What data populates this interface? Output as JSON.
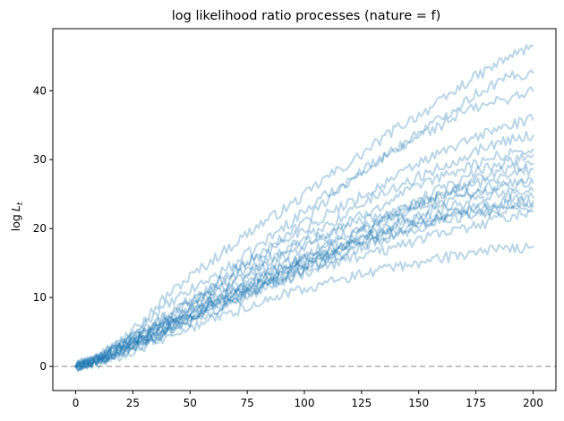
{
  "chart_data": {
    "type": "line",
    "title": "log likelihood ratio processes (nature = f)",
    "xlabel": "",
    "ylabel_main": "log",
    "ylabel_sym": "L",
    "ylabel_sub": "t",
    "xlim": [
      -10,
      210
    ],
    "ylim": [
      -3.5,
      49
    ],
    "xticks": [
      0,
      25,
      50,
      75,
      100,
      125,
      150,
      175,
      200
    ],
    "yticks": [
      0,
      10,
      20,
      30,
      40
    ],
    "grid": false,
    "legend": "none",
    "line_color": "#1f77b4",
    "line_alpha": 0.3,
    "reference_line": {
      "y": 0,
      "color": "#b0b0b0",
      "style": "dashed"
    },
    "x_sample": [
      0,
      10,
      20,
      30,
      40,
      50,
      60,
      70,
      80,
      90,
      100,
      110,
      120,
      130,
      140,
      150,
      160,
      170,
      180,
      190,
      200
    ],
    "series": [
      {
        "values": [
          0,
          1.2,
          3.6,
          6.9,
          10.3,
          13.0,
          15.5,
          18.0,
          20.5,
          22.5,
          24.8,
          27.5,
          29.5,
          32.0,
          34.5,
          36.5,
          38.5,
          41.0,
          43.0,
          45.0,
          46.5
        ]
      },
      {
        "values": [
          0,
          1.5,
          3.8,
          6.5,
          8.8,
          11.0,
          13.0,
          15.0,
          17.5,
          20.0,
          22.5,
          25.0,
          27.0,
          29.5,
          31.5,
          34.0,
          36.0,
          38.5,
          40.5,
          42.0,
          42.6
        ]
      },
      {
        "values": [
          0,
          1.0,
          3.0,
          5.0,
          7.2,
          9.5,
          11.5,
          14.0,
          16.0,
          18.5,
          21.0,
          24.0,
          27.0,
          29.5,
          31.0,
          33.5,
          35.0,
          37.0,
          38.0,
          39.0,
          40.0
        ]
      },
      {
        "values": [
          0,
          1.3,
          3.2,
          5.4,
          7.5,
          9.6,
          11.8,
          14.0,
          16.0,
          18.0,
          20.0,
          22.0,
          24.0,
          25.5,
          27.5,
          29.5,
          31.0,
          32.5,
          34.0,
          35.0,
          35.8
        ]
      },
      {
        "values": [
          0,
          0.9,
          2.6,
          4.5,
          6.6,
          8.6,
          10.6,
          12.5,
          14.5,
          16.5,
          18.5,
          20.5,
          22.5,
          24.5,
          26.0,
          27.5,
          29.0,
          30.5,
          32.0,
          33.0,
          33.5
        ]
      },
      {
        "values": [
          0,
          1.1,
          2.8,
          4.6,
          6.5,
          8.4,
          10.2,
          12.0,
          13.8,
          15.6,
          17.4,
          19.2,
          21.0,
          22.8,
          24.5,
          26.0,
          27.5,
          28.8,
          30.0,
          31.0,
          31.5
        ]
      },
      {
        "values": [
          0,
          1.0,
          2.5,
          4.2,
          6.0,
          7.8,
          9.6,
          11.2,
          13.0,
          14.6,
          16.2,
          17.8,
          19.4,
          21.0,
          22.6,
          24.2,
          25.8,
          27.3,
          28.8,
          30.0,
          30.6
        ]
      },
      {
        "values": [
          0,
          0.8,
          2.3,
          3.9,
          5.6,
          7.3,
          9.0,
          10.6,
          12.2,
          13.8,
          15.4,
          17.0,
          18.6,
          20.2,
          21.8,
          23.4,
          25.0,
          26.5,
          27.8,
          28.8,
          29.4
        ]
      },
      {
        "values": [
          0,
          1.2,
          2.9,
          4.7,
          6.4,
          8.0,
          9.6,
          11.2,
          12.8,
          14.4,
          16.0,
          17.5,
          19.0,
          20.5,
          22.0,
          23.4,
          24.8,
          26.0,
          27.0,
          28.0,
          28.6
        ]
      },
      {
        "values": [
          0,
          0.7,
          2.1,
          3.7,
          5.3,
          6.9,
          8.5,
          10.0,
          11.6,
          13.1,
          14.6,
          16.1,
          17.6,
          19.1,
          20.6,
          22.0,
          23.4,
          24.6,
          25.6,
          26.3,
          26.6
        ]
      },
      {
        "values": [
          0,
          0.9,
          2.4,
          4.0,
          5.6,
          7.2,
          8.8,
          10.4,
          11.9,
          13.4,
          14.9,
          16.4,
          17.8,
          19.2,
          20.5,
          21.7,
          22.8,
          23.8,
          24.6,
          25.2,
          25.5
        ]
      },
      {
        "values": [
          0,
          0.6,
          1.9,
          3.4,
          4.9,
          6.4,
          7.9,
          9.4,
          10.9,
          12.4,
          13.9,
          15.3,
          16.7,
          18.0,
          19.2,
          20.4,
          21.5,
          22.5,
          23.4,
          24.1,
          24.5
        ]
      },
      {
        "values": [
          0,
          1.0,
          2.6,
          4.3,
          5.9,
          7.5,
          9.0,
          10.5,
          12.0,
          13.4,
          14.8,
          16.2,
          17.6,
          18.9,
          20.0,
          21.0,
          21.9,
          22.7,
          23.3,
          23.8,
          24.0
        ]
      },
      {
        "values": [
          0,
          0.8,
          2.2,
          3.8,
          5.3,
          6.8,
          8.3,
          9.8,
          11.2,
          12.6,
          14.0,
          15.4,
          16.7,
          18.0,
          19.1,
          20.1,
          21.0,
          21.8,
          22.4,
          22.9,
          23.3
        ]
      },
      {
        "values": [
          0,
          1.1,
          2.7,
          4.4,
          6.1,
          7.7,
          9.3,
          10.9,
          12.3,
          13.7,
          15.1,
          16.4,
          17.6,
          18.7,
          19.7,
          20.6,
          21.4,
          22.1,
          22.7,
          23.2,
          23.6
        ]
      },
      {
        "values": [
          0,
          0.5,
          1.6,
          2.9,
          4.2,
          5.5,
          6.8,
          8.0,
          9.2,
          10.3,
          11.3,
          12.2,
          13.0,
          13.8,
          14.5,
          15.1,
          15.7,
          16.2,
          16.7,
          17.0,
          17.4
        ]
      },
      {
        "values": [
          0,
          0.7,
          2.0,
          3.5,
          5.0,
          6.5,
          8.1,
          9.6,
          11.0,
          12.3,
          13.5,
          14.6,
          15.6,
          16.5,
          17.4,
          18.3,
          19.2,
          20.0,
          20.9,
          21.8,
          22.5
        ]
      },
      {
        "values": [
          0,
          1.4,
          3.3,
          5.3,
          7.3,
          9.3,
          11.3,
          13.2,
          15.0,
          16.6,
          18.0,
          19.3,
          20.5,
          21.6,
          22.6,
          23.5,
          24.4,
          25.2,
          25.9,
          26.5,
          27.0
        ]
      }
    ]
  }
}
